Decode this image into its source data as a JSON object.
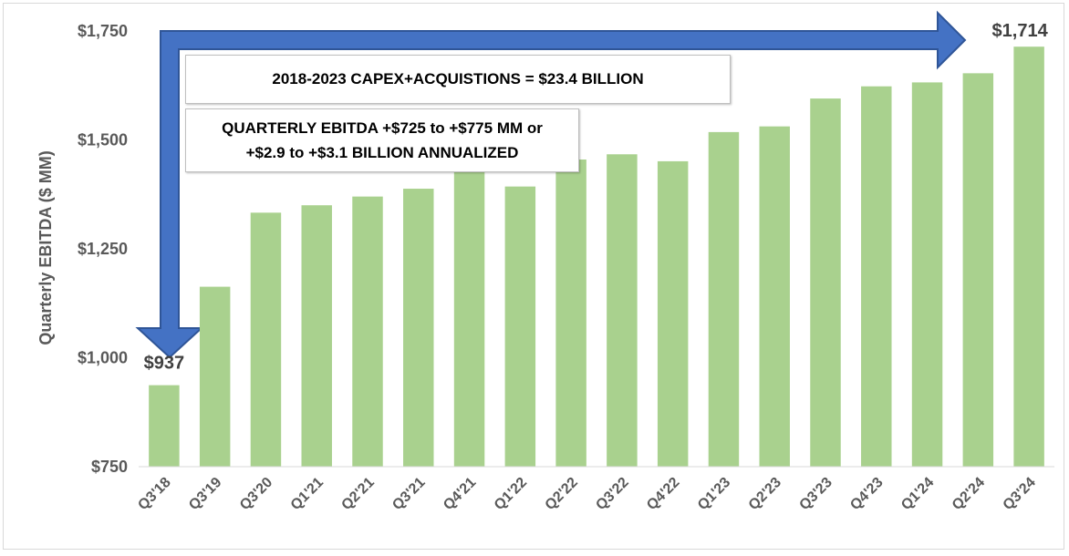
{
  "chart_data": {
    "type": "bar",
    "title": "",
    "ylabel": "Quarterly  EBITDA ($ MM)",
    "xlabel": "",
    "ylim": [
      750,
      1750
    ],
    "yticks": [
      750,
      1000,
      1250,
      1500,
      1750
    ],
    "ytick_labels": [
      "$750",
      "$1,000",
      "$1,250",
      "$1,500",
      "$1,750"
    ],
    "grid": false,
    "categories": [
      "Q3'18",
      "Q3'19",
      "Q3'20",
      "Q1'21",
      "Q2'21",
      "Q3'21",
      "Q4'21",
      "Q1'22",
      "Q2'22",
      "Q3'22",
      "Q4'22",
      "Q1'23",
      "Q2'23",
      "Q3'23",
      "Q4'23",
      "Q1'24",
      "Q2'24",
      "Q3'24"
    ],
    "values": [
      937,
      1163,
      1333,
      1350,
      1370,
      1388,
      1438,
      1393,
      1455,
      1467,
      1451,
      1518,
      1531,
      1595,
      1623,
      1632,
      1653,
      1714
    ],
    "data_labels": [
      {
        "category": "Q3'18",
        "text": "$937"
      },
      {
        "category": "Q3'24",
        "text": "$1,714"
      }
    ],
    "bar_color": "#a9d18e",
    "arrow_color": "#4472c4"
  },
  "annotations": {
    "capex": "2018-2023 CAPEX+ACQUISTIONS = $23.4 BILLION",
    "ebitda_line1": "QUARTERLY EBITDA +$725 to +$775 MM or",
    "ebitda_line2": "+$2.9 to +$3.1 BILLION ANNUALIZED"
  }
}
